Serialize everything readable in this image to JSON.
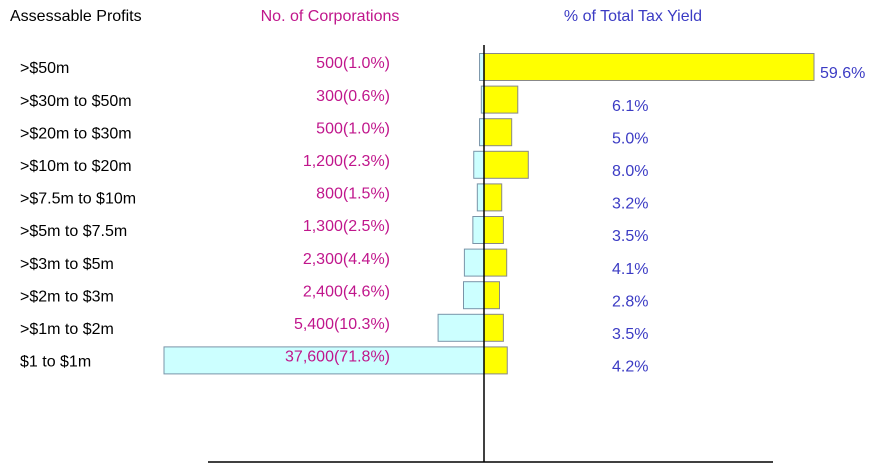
{
  "chart_data": {
    "type": "butterfly-bar",
    "category_label": "Assessable Profits",
    "categories": [
      ">$50m",
      ">$30m to $50m",
      ">$20m to $30m",
      ">$10m to $20m",
      ">$7.5m to $10m",
      ">$5m to $7.5m",
      ">$3m to $5m",
      ">$2m to $3m",
      ">$1m to $2m",
      "$1 to $1m"
    ],
    "series": [
      {
        "name": "No. of Corporations",
        "color": "#ccffff",
        "label_color": "#c0168c",
        "values": [
          1.0,
          0.6,
          1.0,
          2.3,
          1.5,
          2.5,
          4.4,
          4.6,
          10.3,
          71.8
        ],
        "value_labels": [
          "500(1.0%)",
          "300(0.6%)",
          "500(1.0%)",
          "1,200(2.3%)",
          "800(1.5%)",
          "1,300(2.5%)",
          "2,300(4.4%)",
          "2,400(4.6%)",
          "5,400(10.3%)",
          "37,600(71.8%)"
        ]
      },
      {
        "name": "% of Total Tax Yield",
        "color": "#ffff00",
        "label_color": "#3b3bc4",
        "values": [
          59.6,
          6.1,
          5.0,
          8.0,
          3.2,
          3.5,
          4.1,
          2.8,
          3.5,
          4.2
        ],
        "value_labels": [
          "59.6%",
          "6.1%",
          "5.0%",
          "8.0%",
          "3.2%",
          "3.5%",
          "4.1%",
          "2.8%",
          "3.5%",
          "4.2%"
        ]
      }
    ]
  }
}
